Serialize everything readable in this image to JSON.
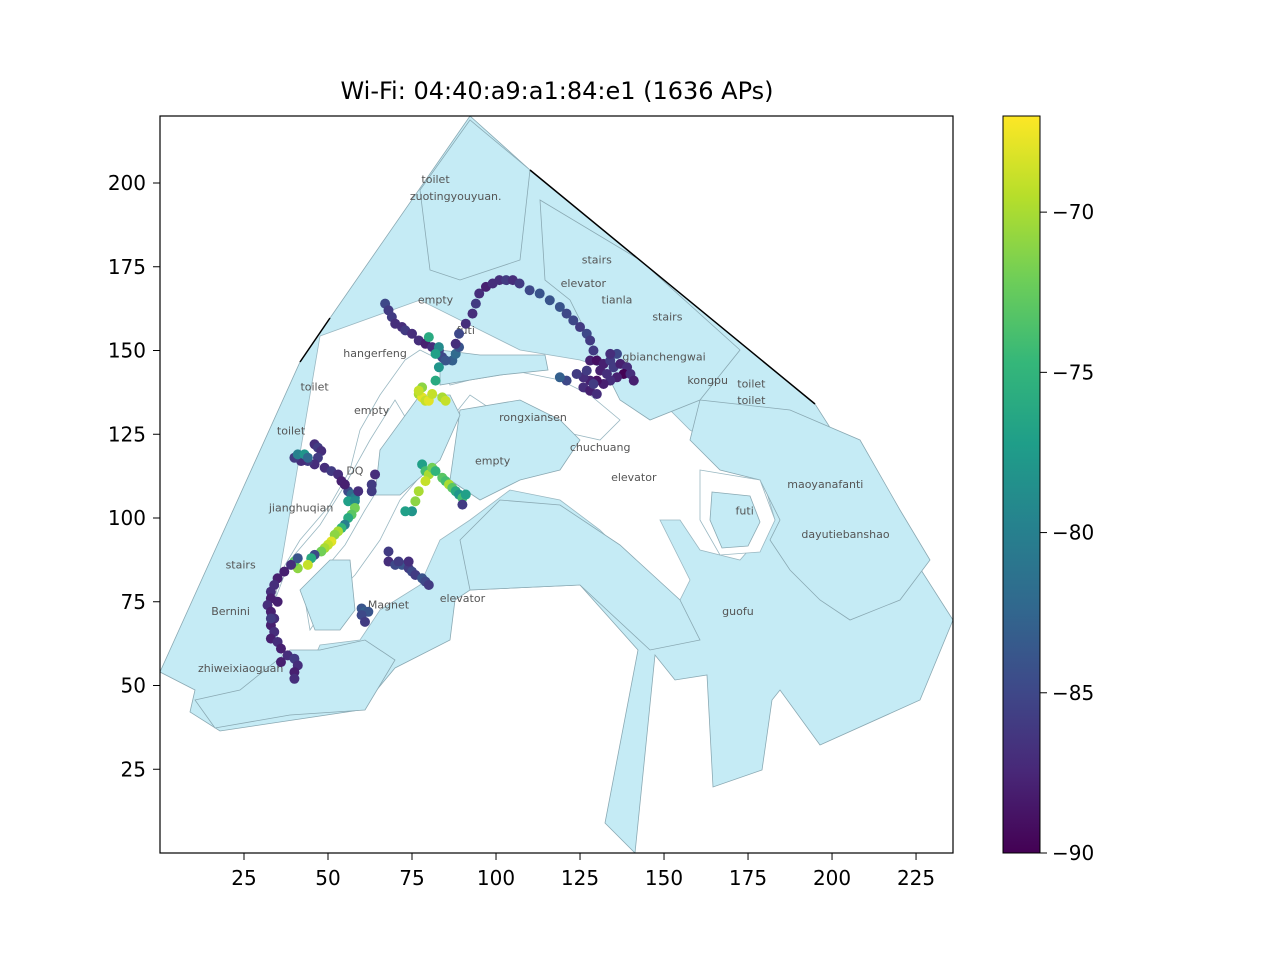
{
  "title": "Wi-Fi: 04:40:a9:a1:84:e1 (1636 APs)",
  "colors": {
    "floor_fill": "#c5ebf5",
    "floor_edge": "#8aa9b3",
    "viridis": [
      "#440154",
      "#482878",
      "#3e4989",
      "#31688e",
      "#26828e",
      "#1f9e89",
      "#35b779",
      "#6ece58",
      "#b5de2b",
      "#fde725"
    ]
  },
  "chart_data": {
    "type": "scatter",
    "title": "Wi-Fi: 04:40:a9:a1:84:e1 (1636 APs)",
    "xlim": [
      0,
      236
    ],
    "ylim": [
      0,
      220
    ],
    "xticks": [
      25,
      50,
      75,
      100,
      125,
      150,
      175,
      200,
      225
    ],
    "yticks": [
      25,
      50,
      75,
      100,
      125,
      150,
      175,
      200
    ],
    "colorbar": {
      "range": [
        -90,
        -67
      ],
      "ticks": [
        -90,
        -85,
        -80,
        -75,
        -70
      ],
      "tick_labels": [
        "−90",
        "−85",
        "−80",
        "−75",
        "−70"
      ],
      "colormap": "viridis"
    },
    "room_labels": [
      {
        "text": "toilet",
        "x": 82,
        "y": 200
      },
      {
        "text": "zuotingyouyuan.",
        "x": 88,
        "y": 195
      },
      {
        "text": "stairs",
        "x": 130,
        "y": 176
      },
      {
        "text": "elevator",
        "x": 126,
        "y": 169
      },
      {
        "text": "tianla",
        "x": 136,
        "y": 164
      },
      {
        "text": "empty",
        "x": 82,
        "y": 164
      },
      {
        "text": "futi",
        "x": 91,
        "y": 155
      },
      {
        "text": "stairs",
        "x": 151,
        "y": 159
      },
      {
        "text": "hangerfeng",
        "x": 64,
        "y": 148
      },
      {
        "text": "gbianchengwai",
        "x": 150,
        "y": 147
      },
      {
        "text": "kongpu",
        "x": 163,
        "y": 140
      },
      {
        "text": "toilet",
        "x": 176,
        "y": 139
      },
      {
        "text": "toilet",
        "x": 176,
        "y": 134
      },
      {
        "text": "toilet",
        "x": 46,
        "y": 138
      },
      {
        "text": "empty",
        "x": 63,
        "y": 131
      },
      {
        "text": "rongxiansen",
        "x": 111,
        "y": 129
      },
      {
        "text": "toilet",
        "x": 39,
        "y": 125
      },
      {
        "text": "chuchuang",
        "x": 131,
        "y": 120
      },
      {
        "text": "empty",
        "x": 99,
        "y": 116
      },
      {
        "text": "DQ",
        "x": 58,
        "y": 113
      },
      {
        "text": "elevator",
        "x": 141,
        "y": 111
      },
      {
        "text": "maoyanafanti",
        "x": 198,
        "y": 109
      },
      {
        "text": "jianghuqian",
        "x": 42,
        "y": 102
      },
      {
        "text": "futi",
        "x": 174,
        "y": 101
      },
      {
        "text": "dayutiebanshao",
        "x": 204,
        "y": 94
      },
      {
        "text": "stairs",
        "x": 24,
        "y": 85
      },
      {
        "text": "elevator",
        "x": 90,
        "y": 75
      },
      {
        "text": "Magnet",
        "x": 68,
        "y": 73
      },
      {
        "text": "Bernini",
        "x": 21,
        "y": 71
      },
      {
        "text": "guofu",
        "x": 172,
        "y": 71
      },
      {
        "text": "zhiweixiaoguan",
        "x": 24,
        "y": 54
      }
    ],
    "points": [
      {
        "x": 67,
        "y": 164,
        "v": -85
      },
      {
        "x": 68,
        "y": 162,
        "v": -86
      },
      {
        "x": 69,
        "y": 160,
        "v": -86
      },
      {
        "x": 70,
        "y": 158,
        "v": -87
      },
      {
        "x": 72,
        "y": 157,
        "v": -87
      },
      {
        "x": 73,
        "y": 156,
        "v": -86
      },
      {
        "x": 75,
        "y": 155,
        "v": -87
      },
      {
        "x": 77,
        "y": 153,
        "v": -87
      },
      {
        "x": 79,
        "y": 152,
        "v": -88
      },
      {
        "x": 81,
        "y": 151,
        "v": -87
      },
      {
        "x": 83,
        "y": 150,
        "v": -86
      },
      {
        "x": 84,
        "y": 148,
        "v": -85
      },
      {
        "x": 87,
        "y": 147,
        "v": -83
      },
      {
        "x": 85,
        "y": 147,
        "v": -84
      },
      {
        "x": 88,
        "y": 149,
        "v": -82
      },
      {
        "x": 89,
        "y": 151,
        "v": -84
      },
      {
        "x": 88,
        "y": 152,
        "v": -87
      },
      {
        "x": 89,
        "y": 155,
        "v": -85
      },
      {
        "x": 91,
        "y": 158,
        "v": -87
      },
      {
        "x": 93,
        "y": 161,
        "v": -87
      },
      {
        "x": 94,
        "y": 164,
        "v": -86
      },
      {
        "x": 95,
        "y": 167,
        "v": -87
      },
      {
        "x": 97,
        "y": 169,
        "v": -88
      },
      {
        "x": 99,
        "y": 170,
        "v": -87
      },
      {
        "x": 101,
        "y": 171,
        "v": -87
      },
      {
        "x": 103,
        "y": 171,
        "v": -86
      },
      {
        "x": 105,
        "y": 171,
        "v": -87
      },
      {
        "x": 107,
        "y": 170,
        "v": -86
      },
      {
        "x": 110,
        "y": 168,
        "v": -85
      },
      {
        "x": 113,
        "y": 167,
        "v": -84
      },
      {
        "x": 116,
        "y": 165,
        "v": -84
      },
      {
        "x": 119,
        "y": 163,
        "v": -84
      },
      {
        "x": 121,
        "y": 161,
        "v": -85
      },
      {
        "x": 123,
        "y": 159,
        "v": -85
      },
      {
        "x": 125,
        "y": 157,
        "v": -86
      },
      {
        "x": 127,
        "y": 155,
        "v": -85
      },
      {
        "x": 128,
        "y": 153,
        "v": -86
      },
      {
        "x": 129,
        "y": 150,
        "v": -86
      },
      {
        "x": 128,
        "y": 147,
        "v": -88
      },
      {
        "x": 130,
        "y": 147,
        "v": -89
      },
      {
        "x": 132,
        "y": 146,
        "v": -88
      },
      {
        "x": 134,
        "y": 147,
        "v": -86
      },
      {
        "x": 136,
        "y": 149,
        "v": -85
      },
      {
        "x": 134,
        "y": 149,
        "v": -87
      },
      {
        "x": 131,
        "y": 144,
        "v": -88
      },
      {
        "x": 133,
        "y": 143,
        "v": -87
      },
      {
        "x": 135,
        "y": 145,
        "v": -86
      },
      {
        "x": 137,
        "y": 146,
        "v": -88
      },
      {
        "x": 139,
        "y": 145,
        "v": -87
      },
      {
        "x": 138,
        "y": 143,
        "v": -90
      },
      {
        "x": 140,
        "y": 143,
        "v": -87
      },
      {
        "x": 141,
        "y": 141,
        "v": -88
      },
      {
        "x": 136,
        "y": 142,
        "v": -88
      },
      {
        "x": 134,
        "y": 141,
        "v": -87
      },
      {
        "x": 132,
        "y": 140,
        "v": -88
      },
      {
        "x": 130,
        "y": 141,
        "v": -89
      },
      {
        "x": 128,
        "y": 141,
        "v": -88
      },
      {
        "x": 126,
        "y": 142,
        "v": -87
      },
      {
        "x": 124,
        "y": 143,
        "v": -86
      },
      {
        "x": 126,
        "y": 139,
        "v": -87
      },
      {
        "x": 128,
        "y": 138,
        "v": -88
      },
      {
        "x": 130,
        "y": 137,
        "v": -87
      },
      {
        "x": 129,
        "y": 140,
        "v": -86
      },
      {
        "x": 121,
        "y": 141,
        "v": -85
      },
      {
        "x": 119,
        "y": 142,
        "v": -83
      },
      {
        "x": 127,
        "y": 144,
        "v": -86
      },
      {
        "x": 80,
        "y": 154,
        "v": -76
      },
      {
        "x": 83,
        "y": 151,
        "v": -79
      },
      {
        "x": 82,
        "y": 149,
        "v": -77
      },
      {
        "x": 83,
        "y": 145,
        "v": -78
      },
      {
        "x": 82,
        "y": 141,
        "v": -76
      },
      {
        "x": 78,
        "y": 139,
        "v": -71
      },
      {
        "x": 77,
        "y": 137,
        "v": -70
      },
      {
        "x": 78,
        "y": 136,
        "v": -68
      },
      {
        "x": 79,
        "y": 135,
        "v": -69
      },
      {
        "x": 80,
        "y": 135,
        "v": -68
      },
      {
        "x": 81,
        "y": 137,
        "v": -69
      },
      {
        "x": 84,
        "y": 136,
        "v": -70
      },
      {
        "x": 85,
        "y": 135,
        "v": -69
      },
      {
        "x": 77,
        "y": 138,
        "v": -69
      },
      {
        "x": 46,
        "y": 122,
        "v": -87
      },
      {
        "x": 47,
        "y": 121,
        "v": -86
      },
      {
        "x": 48,
        "y": 120,
        "v": -87
      },
      {
        "x": 47,
        "y": 118,
        "v": -86
      },
      {
        "x": 46,
        "y": 116,
        "v": -87
      },
      {
        "x": 44,
        "y": 117,
        "v": -86
      },
      {
        "x": 42,
        "y": 117,
        "v": -87
      },
      {
        "x": 40,
        "y": 118,
        "v": -86
      },
      {
        "x": 41,
        "y": 119,
        "v": -80
      },
      {
        "x": 43,
        "y": 119,
        "v": -78
      },
      {
        "x": 44,
        "y": 118,
        "v": -82
      },
      {
        "x": 49,
        "y": 115,
        "v": -87
      },
      {
        "x": 51,
        "y": 114,
        "v": -86
      },
      {
        "x": 53,
        "y": 113,
        "v": -87
      },
      {
        "x": 54,
        "y": 111,
        "v": -88
      },
      {
        "x": 55,
        "y": 110,
        "v": -84
      },
      {
        "x": 56,
        "y": 108,
        "v": -85
      },
      {
        "x": 57,
        "y": 107,
        "v": -82
      },
      {
        "x": 58,
        "y": 106,
        "v": -80
      },
      {
        "x": 56,
        "y": 105,
        "v": -77
      },
      {
        "x": 58,
        "y": 105,
        "v": -79
      },
      {
        "x": 58,
        "y": 103,
        "v": -72
      },
      {
        "x": 57,
        "y": 101,
        "v": -73
      },
      {
        "x": 56,
        "y": 100,
        "v": -76
      },
      {
        "x": 55,
        "y": 98,
        "v": -80
      },
      {
        "x": 54,
        "y": 97,
        "v": -75
      },
      {
        "x": 53,
        "y": 96,
        "v": -70
      },
      {
        "x": 52,
        "y": 95,
        "v": -71
      },
      {
        "x": 51,
        "y": 93,
        "v": -68
      },
      {
        "x": 50,
        "y": 92,
        "v": -69
      },
      {
        "x": 49,
        "y": 91,
        "v": -70
      },
      {
        "x": 48,
        "y": 90,
        "v": -72
      },
      {
        "x": 46,
        "y": 89,
        "v": -85
      },
      {
        "x": 45,
        "y": 88,
        "v": -76
      },
      {
        "x": 44,
        "y": 86,
        "v": -69
      },
      {
        "x": 41,
        "y": 85,
        "v": -71
      },
      {
        "x": 40,
        "y": 87,
        "v": -73
      },
      {
        "x": 41,
        "y": 88,
        "v": -84
      },
      {
        "x": 39,
        "y": 86,
        "v": -87
      },
      {
        "x": 37,
        "y": 84,
        "v": -88
      },
      {
        "x": 35,
        "y": 82,
        "v": -88
      },
      {
        "x": 34,
        "y": 80,
        "v": -87
      },
      {
        "x": 33,
        "y": 78,
        "v": -87
      },
      {
        "x": 33,
        "y": 76,
        "v": -88
      },
      {
        "x": 32,
        "y": 74,
        "v": -87
      },
      {
        "x": 33,
        "y": 72,
        "v": -88
      },
      {
        "x": 34,
        "y": 70,
        "v": -87
      },
      {
        "x": 33,
        "y": 68,
        "v": -88
      },
      {
        "x": 34,
        "y": 66,
        "v": -87
      },
      {
        "x": 33,
        "y": 64,
        "v": -88
      },
      {
        "x": 35,
        "y": 63,
        "v": -87
      },
      {
        "x": 36,
        "y": 61,
        "v": -88
      },
      {
        "x": 38,
        "y": 59,
        "v": -87
      },
      {
        "x": 40,
        "y": 58,
        "v": -86
      },
      {
        "x": 41,
        "y": 56,
        "v": -87
      },
      {
        "x": 40,
        "y": 54,
        "v": -88
      },
      {
        "x": 40,
        "y": 52,
        "v": -87
      },
      {
        "x": 36,
        "y": 57,
        "v": -88
      },
      {
        "x": 35,
        "y": 75,
        "v": -88
      },
      {
        "x": 33,
        "y": 70,
        "v": -86
      },
      {
        "x": 55,
        "y": 110,
        "v": -88
      },
      {
        "x": 59,
        "y": 108,
        "v": -87
      },
      {
        "x": 64,
        "y": 113,
        "v": -87
      },
      {
        "x": 63,
        "y": 110,
        "v": -86
      },
      {
        "x": 63,
        "y": 108,
        "v": -86
      },
      {
        "x": 68,
        "y": 90,
        "v": -86
      },
      {
        "x": 68,
        "y": 87,
        "v": -87
      },
      {
        "x": 70,
        "y": 86,
        "v": -85
      },
      {
        "x": 72,
        "y": 86,
        "v": -84
      },
      {
        "x": 74,
        "y": 85,
        "v": -86
      },
      {
        "x": 75,
        "y": 84,
        "v": -85
      },
      {
        "x": 76,
        "y": 83,
        "v": -86
      },
      {
        "x": 78,
        "y": 82,
        "v": -84
      },
      {
        "x": 79,
        "y": 81,
        "v": -85
      },
      {
        "x": 80,
        "y": 80,
        "v": -86
      },
      {
        "x": 74,
        "y": 87,
        "v": -87
      },
      {
        "x": 71,
        "y": 87,
        "v": -86
      },
      {
        "x": 60,
        "y": 73,
        "v": -84
      },
      {
        "x": 61,
        "y": 72,
        "v": -83
      },
      {
        "x": 62,
        "y": 72,
        "v": -84
      },
      {
        "x": 60,
        "y": 71,
        "v": -85
      },
      {
        "x": 61,
        "y": 69,
        "v": -86
      },
      {
        "x": 78,
        "y": 116,
        "v": -77
      },
      {
        "x": 79,
        "y": 114,
        "v": -74
      },
      {
        "x": 80,
        "y": 113,
        "v": -70
      },
      {
        "x": 81,
        "y": 115,
        "v": -72
      },
      {
        "x": 82,
        "y": 114,
        "v": -75
      },
      {
        "x": 84,
        "y": 112,
        "v": -73
      },
      {
        "x": 85,
        "y": 111,
        "v": -74
      },
      {
        "x": 86,
        "y": 110,
        "v": -70
      },
      {
        "x": 87,
        "y": 109,
        "v": -73
      },
      {
        "x": 88,
        "y": 108,
        "v": -76
      },
      {
        "x": 89,
        "y": 107,
        "v": -78
      },
      {
        "x": 90,
        "y": 106,
        "v": -74
      },
      {
        "x": 91,
        "y": 107,
        "v": -77
      },
      {
        "x": 90,
        "y": 104,
        "v": -86
      },
      {
        "x": 79,
        "y": 111,
        "v": -69
      },
      {
        "x": 77,
        "y": 108,
        "v": -70
      },
      {
        "x": 76,
        "y": 105,
        "v": -71
      },
      {
        "x": 75,
        "y": 102,
        "v": -78
      },
      {
        "x": 73,
        "y": 102,
        "v": -77
      }
    ]
  }
}
